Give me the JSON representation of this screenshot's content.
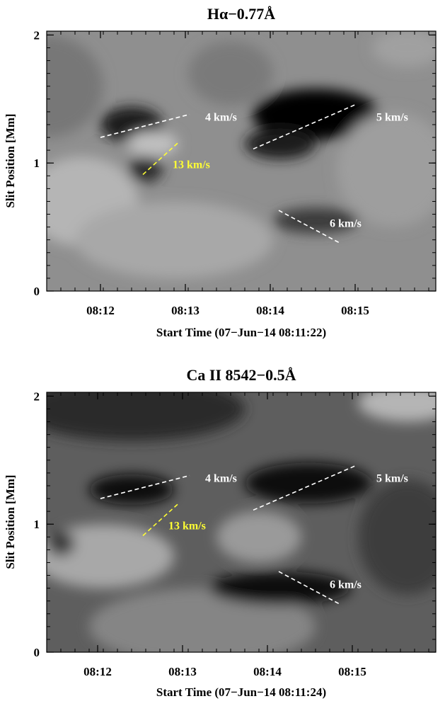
{
  "chart_data": [
    {
      "type": "heatmap",
      "title": "Hα−0.77Å",
      "xlabel": "Start Time (07−Jun−14 08:11:22)",
      "ylabel": "Slit Position [Mm]",
      "x_start_seconds": 0,
      "xlim": [
        0,
        275
      ],
      "ylim": [
        0,
        2.03
      ],
      "xticks": [
        {
          "value": 38,
          "label": "08:12"
        },
        {
          "value": 98,
          "label": "08:13"
        },
        {
          "value": 158,
          "label": "08:14"
        },
        {
          "value": 218,
          "label": "08:15"
        }
      ],
      "yticks": [
        {
          "value": 0,
          "label": "0"
        },
        {
          "value": 1,
          "label": "1"
        },
        {
          "value": 2,
          "label": "2"
        }
      ],
      "background_gray": "#8f8f8f",
      "blobs": [
        {
          "x": 0,
          "y": 1.6,
          "rx": 40,
          "ry": 0.4,
          "gray": "#777777"
        },
        {
          "x": 25,
          "y": 0.7,
          "rx": 40,
          "ry": 0.35,
          "gray": "#b5b5b5"
        },
        {
          "x": 90,
          "y": 0.4,
          "rx": 70,
          "ry": 0.3,
          "gray": "#a8a8a8"
        },
        {
          "x": 60,
          "y": 1.3,
          "rx": 22,
          "ry": 0.14,
          "gray": "#1a1a1a"
        },
        {
          "x": 75,
          "y": 1.15,
          "rx": 18,
          "ry": 0.1,
          "gray": "#c0c0c0"
        },
        {
          "x": 70,
          "y": 0.95,
          "rx": 12,
          "ry": 0.1,
          "gray": "#2a2a2a"
        },
        {
          "x": 190,
          "y": 1.38,
          "rx": 45,
          "ry": 0.2,
          "gray": "#050505"
        },
        {
          "x": 165,
          "y": 1.15,
          "rx": 25,
          "ry": 0.12,
          "gray": "#1f1f1f"
        },
        {
          "x": 190,
          "y": 0.55,
          "rx": 30,
          "ry": 0.1,
          "gray": "#3a3a3a"
        },
        {
          "x": 245,
          "y": 0.95,
          "rx": 40,
          "ry": 0.45,
          "gray": "#9e9e9e"
        },
        {
          "x": 130,
          "y": 1.7,
          "rx": 30,
          "ry": 0.25,
          "gray": "#7a7a7a"
        },
        {
          "x": 255,
          "y": 1.9,
          "rx": 25,
          "ry": 0.15,
          "gray": "#a0a0a0"
        }
      ],
      "annotations": [
        {
          "label": "4 km/s",
          "color": "#ffffff",
          "x1": 38,
          "y1": 1.2,
          "x2": 101,
          "y2": 1.38,
          "tx": 112,
          "ty": 1.33
        },
        {
          "label": "13 km/s",
          "color": "#ffff33",
          "x1": 68,
          "y1": 0.91,
          "x2": 93,
          "y2": 1.16,
          "tx": 89,
          "ty": 0.96
        },
        {
          "label": "5 km/s",
          "color": "#ffffff",
          "x1": 146,
          "y1": 1.11,
          "x2": 219,
          "y2": 1.46,
          "tx": 233,
          "ty": 1.33
        },
        {
          "label": "6 km/s",
          "color": "#ffffff",
          "x1": 164,
          "y1": 0.63,
          "x2": 208,
          "y2": 0.37,
          "tx": 200,
          "ty": 0.5
        }
      ]
    },
    {
      "type": "heatmap",
      "title": "Ca II 8542−0.5Å",
      "xlabel": "Start Time (07−Jun−14 08:11:24)",
      "ylabel": "Slit Position [Mm]",
      "x_start_seconds": 0,
      "xlim": [
        0,
        275
      ],
      "ylim": [
        0,
        2.03
      ],
      "xticks": [
        {
          "value": 36,
          "label": "08:12"
        },
        {
          "value": 96,
          "label": "08:13"
        },
        {
          "value": 156,
          "label": "08:14"
        },
        {
          "value": 216,
          "label": "08:15"
        }
      ],
      "yticks": [
        {
          "value": 0,
          "label": "0"
        },
        {
          "value": 1,
          "label": "1"
        },
        {
          "value": 2,
          "label": "2"
        }
      ],
      "background_gray": "#5e5e5e",
      "blobs": [
        {
          "x": 60,
          "y": 1.9,
          "rx": 80,
          "ry": 0.25,
          "gray": "#2c2c2c"
        },
        {
          "x": 40,
          "y": 0.75,
          "rx": 50,
          "ry": 0.25,
          "gray": "#a8a8a8"
        },
        {
          "x": 110,
          "y": 0.2,
          "rx": 80,
          "ry": 0.3,
          "gray": "#858585"
        },
        {
          "x": 150,
          "y": 0.9,
          "rx": 30,
          "ry": 0.2,
          "gray": "#9a9a9a"
        },
        {
          "x": 255,
          "y": 1.95,
          "rx": 35,
          "ry": 0.15,
          "gray": "#b5b5b5"
        },
        {
          "x": 60,
          "y": 1.27,
          "rx": 30,
          "ry": 0.12,
          "gray": "#080808"
        },
        {
          "x": 185,
          "y": 1.32,
          "rx": 45,
          "ry": 0.16,
          "gray": "#080808"
        },
        {
          "x": 165,
          "y": 0.5,
          "rx": 50,
          "ry": 0.13,
          "gray": "#0c0c0c"
        },
        {
          "x": 10,
          "y": 0.85,
          "rx": 10,
          "ry": 0.1,
          "gray": "#3a3a3a"
        },
        {
          "x": 255,
          "y": 0.9,
          "rx": 35,
          "ry": 0.45,
          "gray": "#3c3c3c"
        }
      ],
      "annotations": [
        {
          "label": "4 km/s",
          "color": "#ffffff",
          "x1": 38,
          "y1": 1.2,
          "x2": 101,
          "y2": 1.38,
          "tx": 112,
          "ty": 1.33
        },
        {
          "label": "13 km/s",
          "color": "#ffff33",
          "x1": 68,
          "y1": 0.91,
          "x2": 93,
          "y2": 1.16,
          "tx": 86,
          "ty": 0.96
        },
        {
          "label": "5 km/s",
          "color": "#ffffff",
          "x1": 146,
          "y1": 1.11,
          "x2": 219,
          "y2": 1.46,
          "tx": 233,
          "ty": 1.33
        },
        {
          "label": "6 km/s",
          "color": "#ffffff",
          "x1": 164,
          "y1": 0.63,
          "x2": 208,
          "y2": 0.37,
          "tx": 200,
          "ty": 0.5
        }
      ]
    }
  ]
}
